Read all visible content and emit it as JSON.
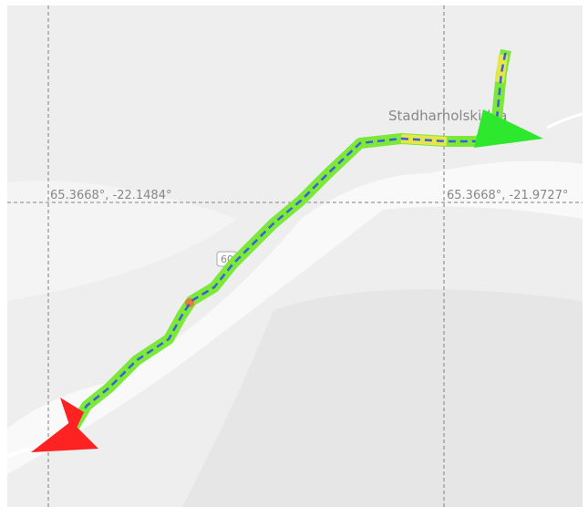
{
  "map": {
    "place_label": "Stadharholskirkja",
    "road_shield": "60",
    "grid_labels": [
      "65.3668°, -22.1484°",
      "65.3668°, -21.9727°"
    ]
  }
}
